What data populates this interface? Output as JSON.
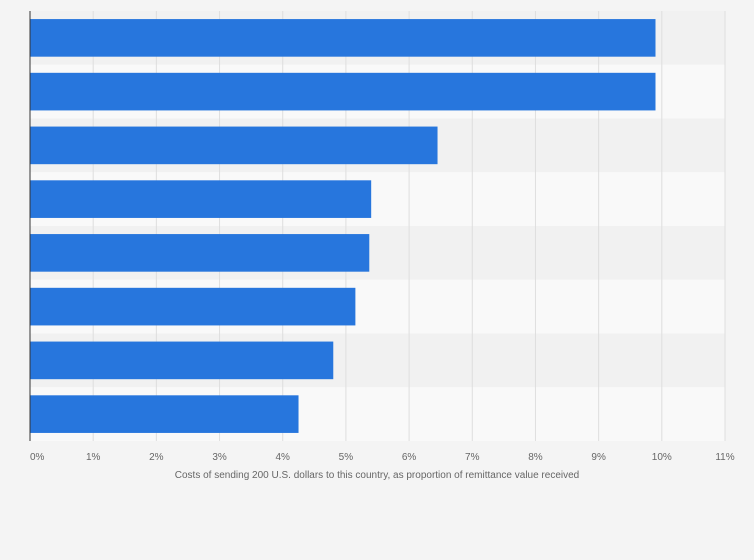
{
  "chart_data": {
    "type": "bar",
    "orientation": "horizontal",
    "title": "",
    "categories": [
      "",
      "",
      "",
      "",
      "",
      "",
      "",
      ""
    ],
    "values": [
      9.9,
      9.9,
      6.45,
      5.4,
      5.37,
      5.15,
      4.8,
      4.25
    ],
    "xlabel": "Costs of sending 200 U.S. dollars to this country, as proportion of remittance value received",
    "ylabel": "",
    "xlim": [
      0,
      11
    ],
    "xticks": [
      "0%",
      "1%",
      "2%",
      "3%",
      "4%",
      "5%",
      "6%",
      "7%",
      "8%",
      "9%",
      "10%",
      "11%"
    ],
    "grid": true,
    "legend": "none",
    "colors": {
      "bar": "#2776dd",
      "band_dark": "#f1f1f1",
      "band_light": "#f9f9f9",
      "grid": "#dedede",
      "axis": "#333333",
      "text": "#666666"
    }
  }
}
